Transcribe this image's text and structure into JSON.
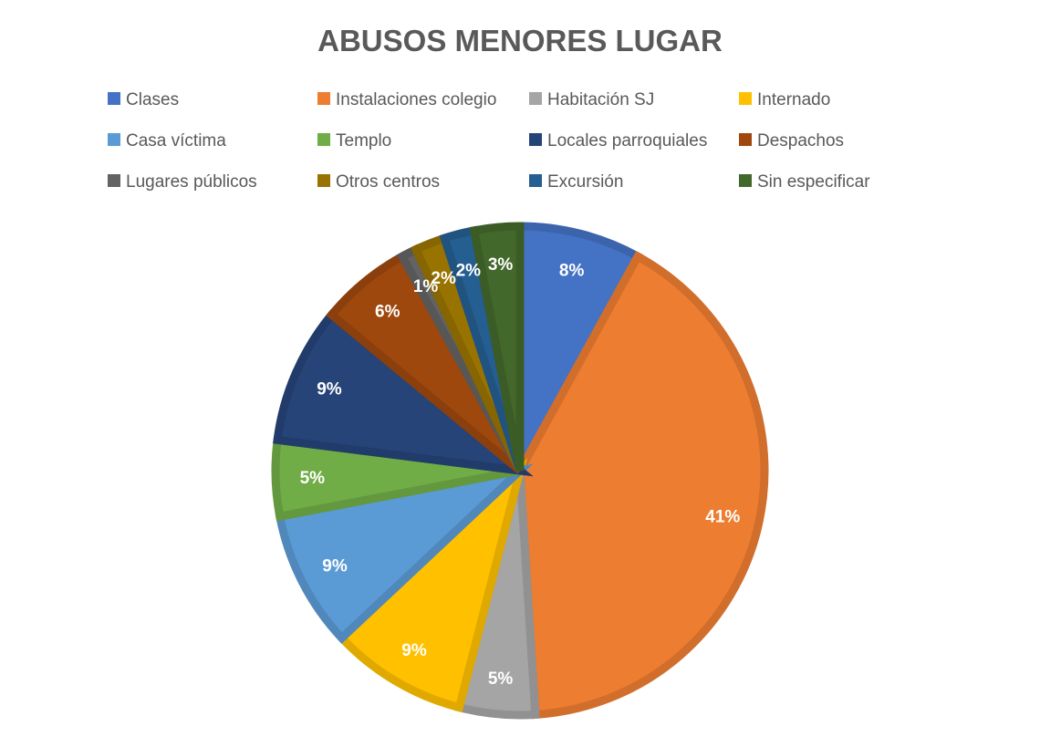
{
  "chart_data": {
    "type": "pie",
    "title": "ABUSOS MENORES LUGAR",
    "legend_position": "top",
    "categories": [
      "Clases",
      "Instalaciones colegio",
      "Habitación SJ",
      "Internado",
      "Casa víctima",
      "Templo",
      "Locales parroquiales",
      "Despachos",
      "Lugares públicos",
      "Otros centros",
      "Excursión",
      "Sin especificar"
    ],
    "values": [
      8,
      41,
      5,
      9,
      9,
      5,
      9,
      6,
      1,
      2,
      2,
      3
    ],
    "labels": [
      "8%",
      "41%",
      "5%",
      "9%",
      "9%",
      "5%",
      "9%",
      "6%",
      "1%",
      "2%",
      "2%",
      "3%"
    ],
    "colors": [
      "#4472C4",
      "#ED7D31",
      "#A5A5A5",
      "#FFC000",
      "#5B9BD5",
      "#70AD47",
      "#264478",
      "#9E480E",
      "#636363",
      "#997300",
      "#255E91",
      "#43682B"
    ]
  }
}
